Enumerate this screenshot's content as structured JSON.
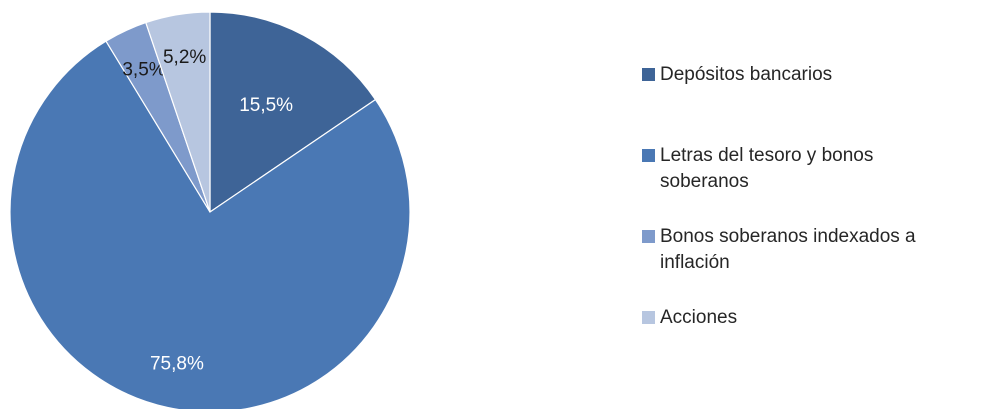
{
  "chart_data": {
    "type": "pie",
    "slices": [
      {
        "label": "Depósitos bancarios",
        "value": 15.5,
        "display": "15,5%",
        "color": "#3E6497",
        "label_color": "#ffffff"
      },
      {
        "label": "Letras del tesoro y bonos soberanos",
        "value": 75.8,
        "display": "75,8%",
        "color": "#4A78B4",
        "label_color": "#ffffff"
      },
      {
        "label": "Bonos soberanos indexados a inflación",
        "value": 3.5,
        "display": "3,5%",
        "color": "#7E9ACB",
        "label_color": "#1a1a1a"
      },
      {
        "label": "Acciones",
        "value": 5.2,
        "display": "5,2%",
        "color": "#B7C6E0",
        "label_color": "#1a1a1a"
      }
    ],
    "legend": {
      "position": "right",
      "items": [
        {
          "label_line1": "Depósitos bancarios",
          "label_line2": ""
        },
        {
          "label_line1": "Letras del tesoro y bonos",
          "label_line2": "soberanos"
        },
        {
          "label_line1": "Bonos soberanos indexados a",
          "label_line2": "inflación"
        },
        {
          "label_line1": "Acciones",
          "label_line2": ""
        }
      ]
    }
  }
}
